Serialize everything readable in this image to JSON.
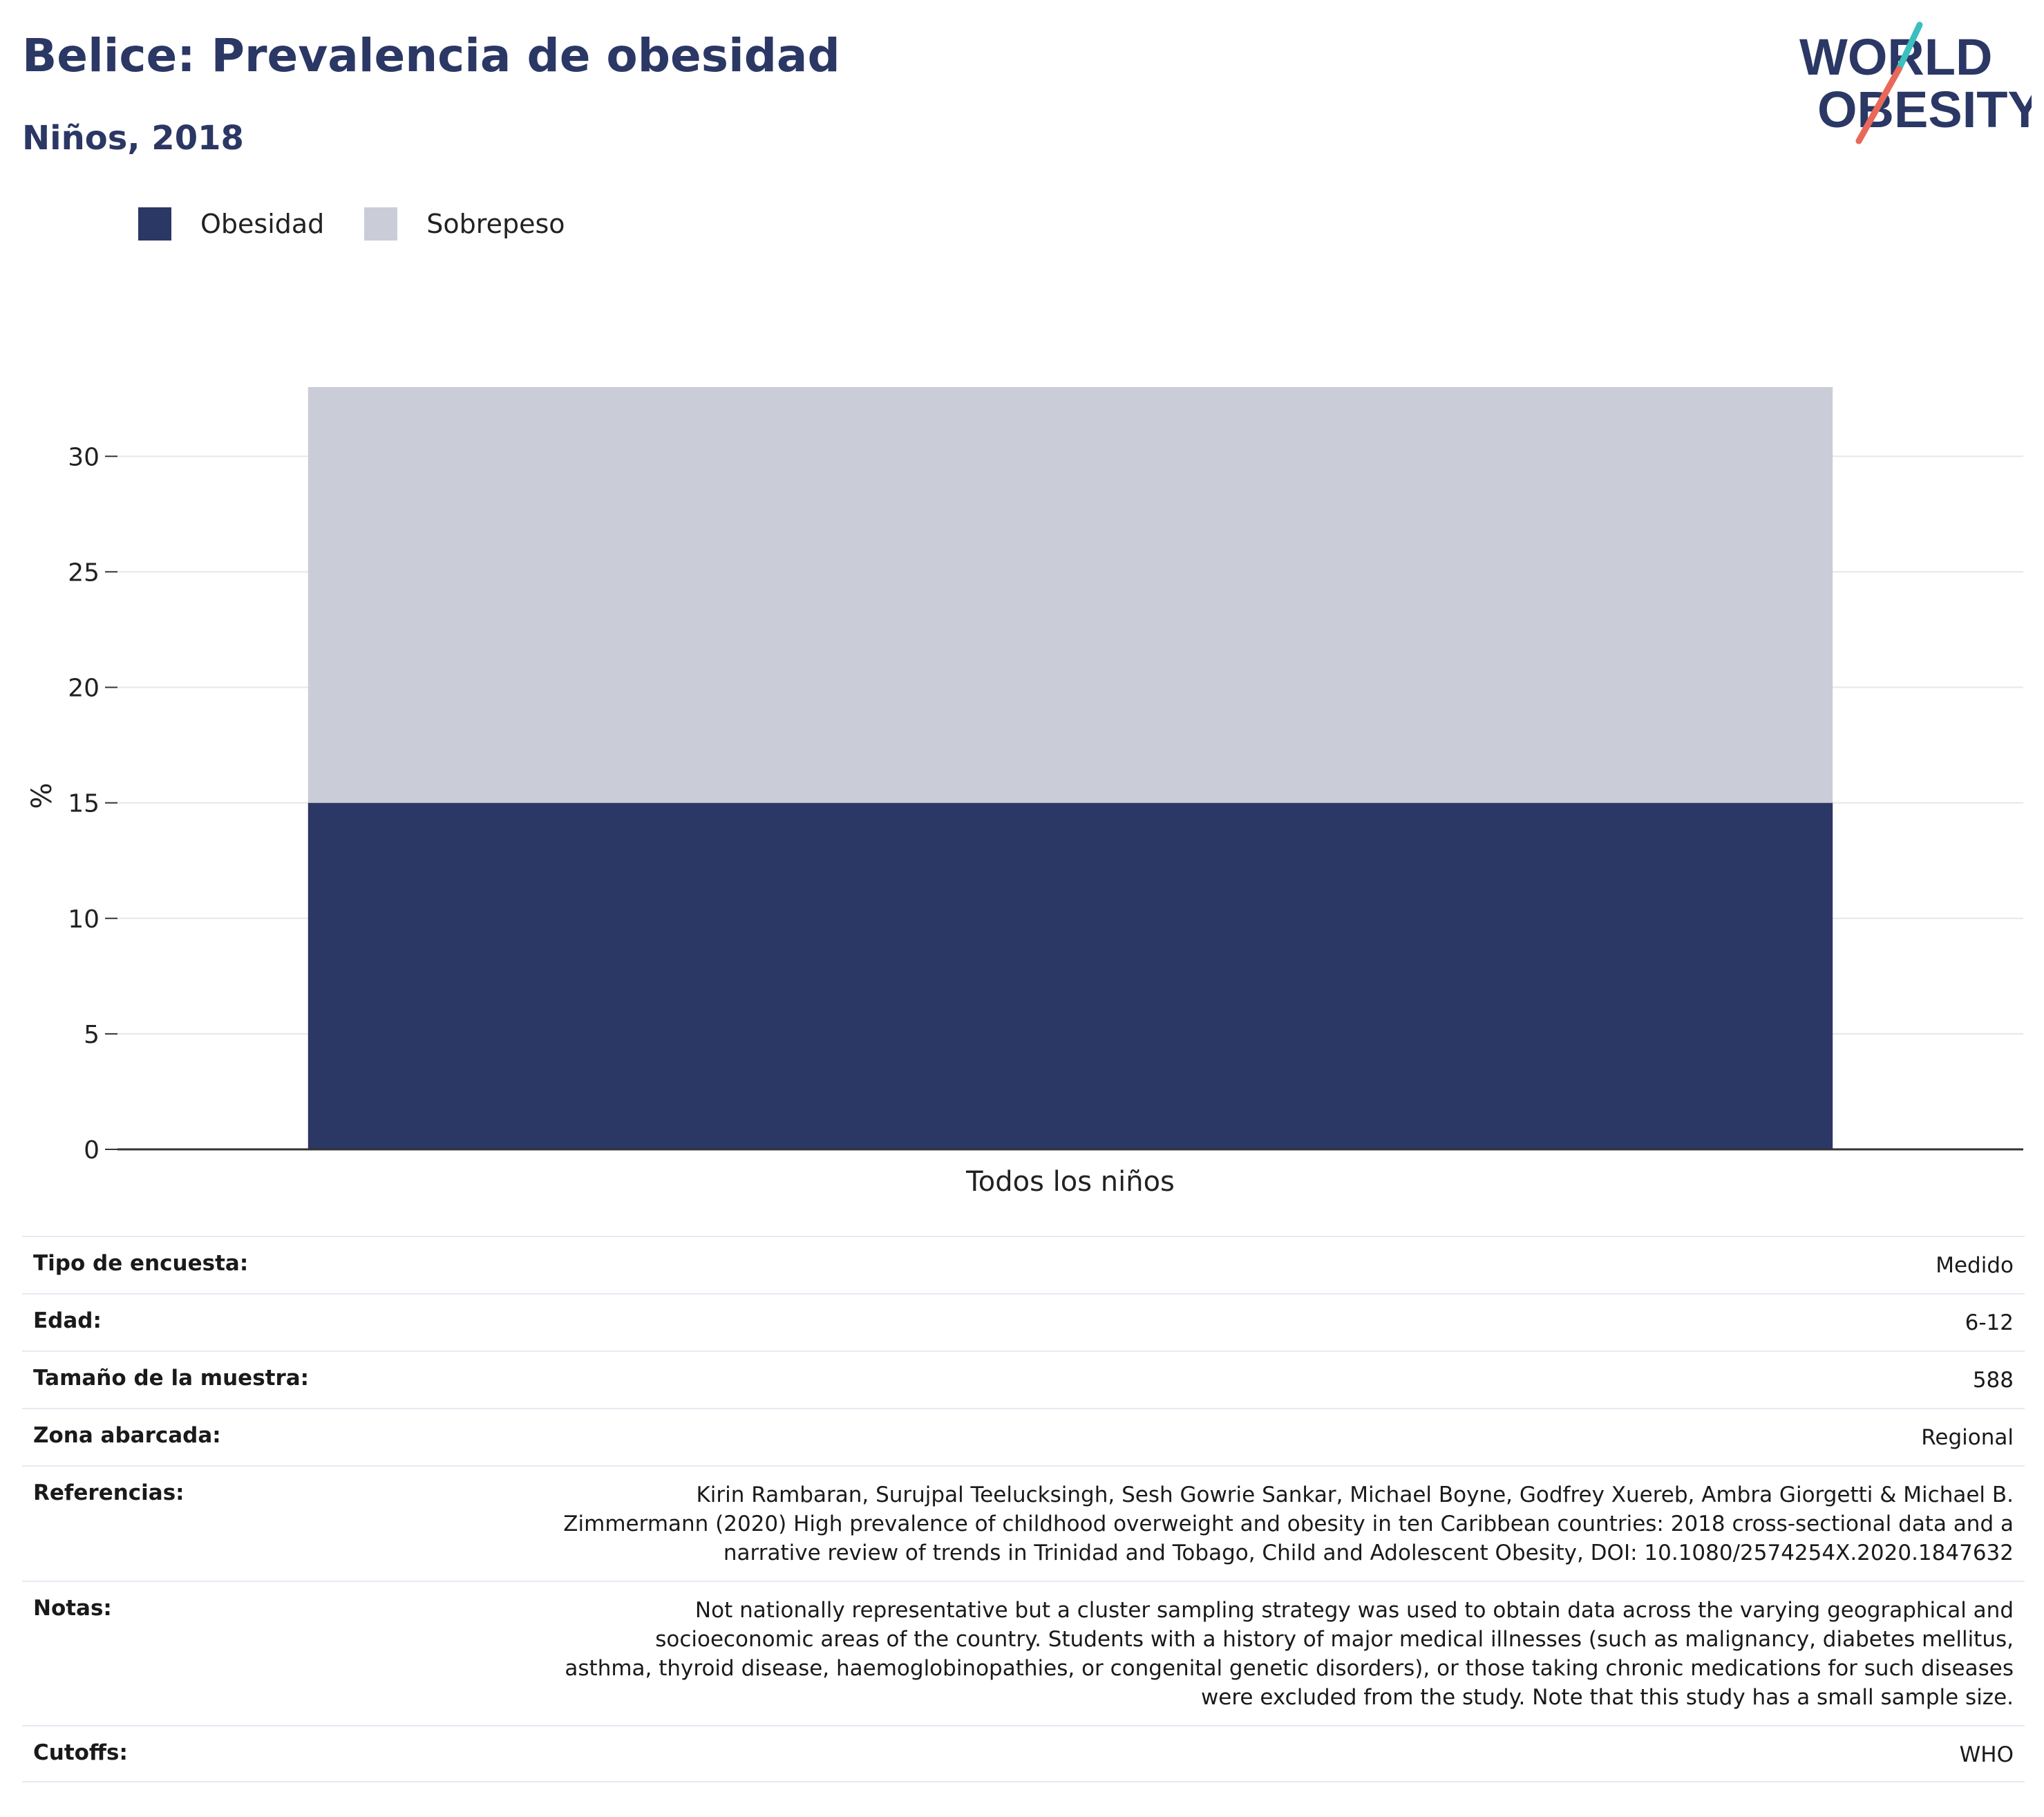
{
  "header": {
    "title": "Belice: Prevalencia de obesidad",
    "subtitle": "Niños, 2018"
  },
  "logo": {
    "line1": "WORLD",
    "line2": "OBESITY",
    "accent_teal": "#3bbfbf",
    "accent_coral": "#e8685a"
  },
  "colors": {
    "obesity": "#2b3764",
    "overweight": "#cacdd8",
    "grid": "#e7e7e7",
    "axis": "#333333",
    "brand": "#2b3764"
  },
  "chart_data": {
    "type": "bar",
    "stacked": true,
    "categories": [
      "Todos los niños"
    ],
    "series": [
      {
        "name": "Obesidad",
        "values": [
          15
        ]
      },
      {
        "name": "Sobrepeso",
        "values": [
          18
        ]
      }
    ],
    "title": "Belice: Prevalencia de obesidad",
    "subtitle": "Niños, 2018",
    "xlabel": "",
    "ylabel": "%",
    "ylim": [
      0,
      33
    ],
    "yticks": [
      0,
      5,
      10,
      15,
      20,
      25,
      30
    ],
    "grid": true,
    "legend": "top-left"
  },
  "meta": [
    {
      "label": "Tipo de encuesta:",
      "value": "Medido"
    },
    {
      "label": "Edad:",
      "value": "6-12"
    },
    {
      "label": "Tamaño de la muestra:",
      "value": "588"
    },
    {
      "label": "Zona abarcada:",
      "value": "Regional"
    },
    {
      "label": "Referencias:",
      "value": "Kirin Rambaran, Surujpal Teelucksingh, Sesh Gowrie Sankar, Michael Boyne, Godfrey Xuereb, Ambra Giorgetti & Michael B. Zimmermann (2020) High prevalence of childhood overweight and obesity in ten Caribbean countries: 2018 cross-sectional data and a narrative review of trends in Trinidad and Tobago, Child and Adolescent Obesity, DOI: 10.1080/2574254X.2020.1847632"
    },
    {
      "label": "Notas:",
      "value": "Not nationally representative but a cluster sampling strategy was used to obtain data across the varying geographical and socioeconomic areas of the country. Students with a history of major medical illnesses (such as malignancy, diabetes mellitus, asthma, thyroid disease, haemoglobinopathies, or congenital genetic disorders), or those taking chronic medications for such diseases were excluded from the study. Note that this study has a small sample size."
    },
    {
      "label": "Cutoffs:",
      "value": "WHO"
    }
  ]
}
